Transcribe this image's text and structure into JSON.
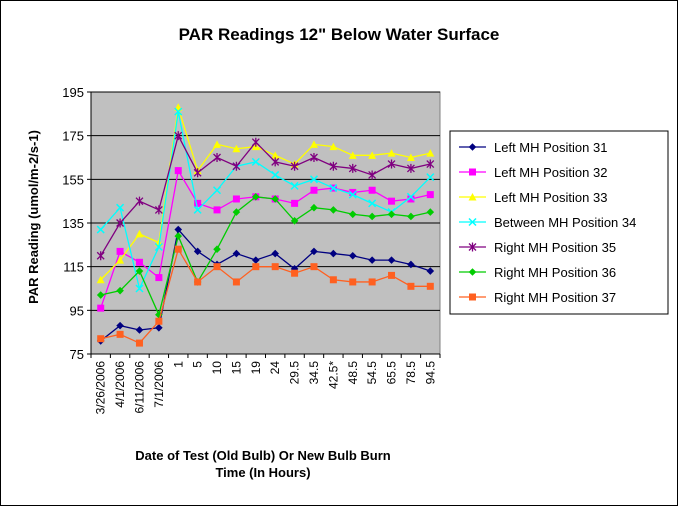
{
  "chart_data": {
    "type": "line",
    "title": "PAR Readings 12\" Below Water Surface",
    "xlabel_lines": [
      "Date of Test (Old Bulb) Or New Bulb Burn",
      "Time (In Hours)"
    ],
    "ylabel": "PAR Reading (umol/m-2/s-1)",
    "ylim": [
      75,
      195
    ],
    "yticks": [
      75,
      95,
      115,
      135,
      155,
      175,
      195
    ],
    "grid": true,
    "legend_position": "right",
    "plot_background": "#c0c0c0",
    "categories": [
      "3/26/2006",
      "4/1/2006",
      "6/11/2006",
      "7/1/2006",
      "1",
      "5",
      "10",
      "15",
      "19",
      "24",
      "29.5",
      "34.5",
      "42.5*",
      "48.5",
      "54.5",
      "65.5",
      "78.5",
      "94.5"
    ],
    "series": [
      {
        "name": "Left MH Position 31",
        "color": "#000080",
        "marker": "diamond",
        "values": [
          81,
          88,
          86,
          87,
          132,
          122,
          116,
          121,
          118,
          121,
          114,
          122,
          121,
          120,
          118,
          118,
          116,
          113
        ]
      },
      {
        "name": "Left MH Position 32",
        "color": "#ff00ff",
        "marker": "square",
        "values": [
          96,
          122,
          117,
          110,
          159,
          144,
          141,
          146,
          147,
          146,
          144,
          150,
          151,
          149,
          150,
          145,
          146,
          148
        ]
      },
      {
        "name": "Left MH Position 33",
        "color": "#ffff00",
        "marker": "triangle",
        "values": [
          109,
          118,
          130,
          126,
          188,
          159,
          171,
          169,
          170,
          166,
          162,
          171,
          170,
          166,
          166,
          167,
          165,
          167
        ]
      },
      {
        "name": "Between MH Position 34",
        "color": "#00ffff",
        "marker": "x",
        "values": [
          132,
          142,
          105,
          124,
          186,
          141,
          150,
          161,
          163,
          157,
          152,
          155,
          151,
          148,
          144,
          140,
          147,
          156
        ]
      },
      {
        "name": "Right MH Position 35",
        "color": "#800080",
        "marker": "star",
        "values": [
          120,
          135,
          145,
          141,
          175,
          158,
          165,
          161,
          172,
          163,
          161,
          165,
          161,
          160,
          157,
          162,
          160,
          162
        ]
      },
      {
        "name": "Right MH Position 36",
        "color": "#00cc00",
        "marker": "diamond",
        "values": [
          102,
          104,
          113,
          93,
          129,
          108,
          123,
          140,
          147,
          146,
          136,
          142,
          141,
          139,
          138,
          139,
          138,
          140
        ]
      },
      {
        "name": "Right MH Position 37",
        "color": "#ff6020",
        "marker": "square",
        "values": [
          82,
          84,
          80,
          90,
          123,
          108,
          115,
          108,
          115,
          115,
          112,
          115,
          109,
          108,
          108,
          111,
          106,
          106
        ]
      }
    ]
  }
}
